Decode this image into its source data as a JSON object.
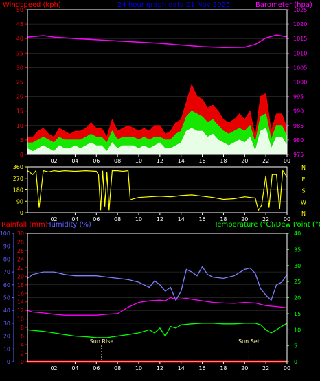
{
  "colors": {
    "background": "#000000",
    "frame": "#ffffff",
    "grid": "#404040",
    "wind_speed": "#ff0000",
    "wind_avg": "#00ff00",
    "wind_min": "#ffffff",
    "barometer": "#ff00ff",
    "direction": "#ffff00",
    "rainfall": "#ff0000",
    "humidity": "#8080ff",
    "temperature": "#ff00ff",
    "dew_point": "#00ff00",
    "title": "#0000ff",
    "sun_marker": "#ffffa0",
    "axis_left_top": "#ff0000",
    "axis_right_top": "#ff00ff",
    "axis_left_bottom_a": "#ff0000",
    "axis_left_bottom_b": "#6060ff",
    "axis_right_bottom": "#00ff00"
  },
  "chart_data": [
    {
      "type": "line",
      "id": "wind-barometer",
      "title": "24 hour graph data  01 Nov 2025",
      "ylabel_left": "Windspeed (kph)",
      "ylabel_right": "Barometer (hpa)",
      "ylim_left": [
        0,
        50
      ],
      "yticks_left": [
        "0",
        "5",
        "10",
        "15",
        "20",
        "25",
        "30",
        "35",
        "40",
        "45",
        "50"
      ],
      "ylim_right": [
        975,
        1025
      ],
      "yticks_right": [
        "975",
        "980",
        "985",
        "990",
        "995",
        "1000",
        "1005",
        "1010",
        "1015",
        "1020",
        "1025"
      ],
      "x_range_hours": [
        -0.5,
        24
      ],
      "x_tick_labels": [
        "02",
        "04",
        "06",
        "08",
        "10",
        "12",
        "14",
        "16",
        "18",
        "20",
        "22",
        "00"
      ],
      "series": [
        {
          "key": "wind_speed",
          "axis": "left",
          "x": [
            -0.5,
            0,
            0.5,
            1,
            1.5,
            2,
            2.5,
            3,
            3.5,
            4,
            4.5,
            5,
            5.5,
            6,
            6.5,
            7,
            7.5,
            8,
            8.5,
            9,
            9.5,
            10,
            10.5,
            11,
            11.5,
            12,
            12.5,
            13,
            13.5,
            14,
            14.5,
            15,
            15.5,
            16,
            16.5,
            17,
            17.5,
            18,
            18.5,
            19,
            19.5,
            20,
            20.5,
            21,
            21.5,
            22,
            22.5,
            23,
            23.5,
            24
          ],
          "y": [
            6,
            6,
            8,
            9,
            7,
            6,
            9,
            8,
            7,
            8,
            8,
            9,
            11,
            9,
            9,
            6,
            12,
            8,
            9,
            10,
            9,
            8,
            9,
            8,
            10,
            10,
            7,
            8,
            11,
            12,
            18,
            24,
            20,
            19,
            16,
            17,
            15,
            12,
            11,
            12,
            14,
            12,
            15,
            6,
            20,
            21,
            8,
            14,
            14,
            9
          ]
        },
        {
          "key": "wind_avg",
          "axis": "left",
          "x": [
            -0.5,
            0,
            0.5,
            1,
            1.5,
            2,
            2.5,
            3,
            3.5,
            4,
            4.5,
            5,
            5.5,
            6,
            6.5,
            7,
            7.5,
            8,
            8.5,
            9,
            9.5,
            10,
            10.5,
            11,
            11.5,
            12,
            12.5,
            13,
            13.5,
            14,
            14.5,
            15,
            15.5,
            16,
            16.5,
            17,
            17.5,
            18,
            18.5,
            19,
            19.5,
            20,
            20.5,
            21,
            21.5,
            22,
            22.5,
            23,
            23.5,
            24
          ],
          "y": [
            4,
            4,
            5,
            6,
            5,
            4,
            6,
            5,
            5,
            5,
            5,
            6,
            7,
            6,
            6,
            4,
            8,
            5,
            6,
            6,
            6,
            5,
            6,
            5,
            6,
            6,
            5,
            5,
            7,
            8,
            13,
            15,
            14,
            13,
            11,
            12,
            10,
            8,
            7,
            8,
            9,
            8,
            10,
            4,
            13,
            14,
            5,
            10,
            10,
            6
          ]
        },
        {
          "key": "wind_min",
          "axis": "left",
          "x": [
            -0.5,
            0,
            0.5,
            1,
            1.5,
            2,
            2.5,
            3,
            3.5,
            4,
            4.5,
            5,
            5.5,
            6,
            6.5,
            7,
            7.5,
            8,
            8.5,
            9,
            9.5,
            10,
            10.5,
            11,
            11.5,
            12,
            12.5,
            13,
            13.5,
            14,
            14.5,
            15,
            15.5,
            16,
            16.5,
            17,
            17.5,
            18,
            18.5,
            19,
            19.5,
            20,
            20.5,
            21,
            21.5,
            22,
            22.5,
            23,
            23.5,
            24
          ],
          "y": [
            2,
            1,
            2,
            3,
            2,
            1,
            3,
            2,
            2,
            3,
            2,
            3,
            4,
            3,
            3,
            1,
            4,
            2,
            3,
            3,
            3,
            2,
            3,
            2,
            3,
            4,
            2,
            2,
            3,
            4,
            8,
            9,
            8,
            8,
            6,
            7,
            5,
            4,
            3,
            4,
            5,
            4,
            6,
            1,
            8,
            9,
            2,
            6,
            6,
            3
          ]
        },
        {
          "key": "barometer",
          "axis": "right",
          "x": [
            -0.5,
            1,
            2,
            4,
            6,
            8,
            10,
            12,
            14,
            16,
            18,
            20,
            21,
            22,
            23,
            24
          ],
          "y": [
            1015.5,
            1016,
            1015.5,
            1015,
            1014.6,
            1014.2,
            1013.8,
            1013.4,
            1012.8,
            1012.2,
            1011.9,
            1012,
            1013,
            1015.2,
            1016.2,
            1015.6
          ]
        }
      ]
    },
    {
      "type": "scatter",
      "id": "wind-direction",
      "yticks_left": [
        "0",
        "90",
        "180",
        "270",
        "360"
      ],
      "ylim": [
        0,
        360
      ],
      "yticks_right": [
        "N",
        "W",
        "S",
        "E",
        "N"
      ],
      "x_range_hours": [
        -0.5,
        24
      ],
      "x_tick_labels": [
        "02",
        "04",
        "06",
        "08",
        "10",
        "12",
        "14",
        "16",
        "18",
        "20",
        "22",
        "00"
      ],
      "series": [
        {
          "key": "direction",
          "x": [
            -0.5,
            0,
            0.3,
            0.6,
            1,
            1.5,
            2,
            2.5,
            3,
            4,
            5,
            6,
            6.2,
            6.4,
            6.6,
            6.8,
            7,
            7.2,
            7.5,
            8,
            8.5,
            9,
            9.2,
            9.5,
            10,
            11,
            12,
            13,
            14,
            15,
            16,
            17,
            18,
            19,
            20,
            21,
            21.3,
            21.6,
            22,
            22.3,
            22.6,
            23,
            23.3,
            23.6,
            24
          ],
          "y": [
            330,
            300,
            330,
            40,
            330,
            320,
            330,
            325,
            330,
            325,
            330,
            325,
            300,
            20,
            330,
            50,
            320,
            20,
            330,
            330,
            325,
            330,
            100,
            110,
            120,
            125,
            130,
            125,
            135,
            140,
            130,
            120,
            105,
            110,
            125,
            115,
            20,
            60,
            290,
            40,
            300,
            300,
            30,
            330,
            280
          ]
        }
      ]
    },
    {
      "type": "line",
      "id": "temp-humidity-rain",
      "ylabel_left_a": "Rainfall (mm)",
      "ylabel_left_b": "Humidity (%)",
      "ylabel_right": "Temperature (°C)/Dew Point (°C)",
      "ylim_humidity": [
        0,
        100
      ],
      "yticks_humidity": [
        "0",
        "10",
        "20",
        "30",
        "40",
        "50",
        "60",
        "70",
        "80",
        "90",
        "100"
      ],
      "ylim_rain": [
        0,
        30
      ],
      "yticks_rain": [
        "0",
        "2",
        "4",
        "6",
        "8",
        "10",
        "12",
        "14",
        "16",
        "18",
        "20",
        "22",
        "24",
        "26",
        "28",
        "30"
      ],
      "ylim_temp": [
        0,
        40
      ],
      "yticks_temp": [
        "0",
        "5",
        "10",
        "15",
        "20",
        "25",
        "30",
        "35",
        "40"
      ],
      "x_range_hours": [
        -0.5,
        24
      ],
      "x_tick_labels": [
        "02",
        "04",
        "06",
        "08",
        "10",
        "12",
        "14",
        "16",
        "18",
        "20",
        "22",
        "00"
      ],
      "annotations": [
        {
          "label": "Sun Rise",
          "x_hour": 6.5
        },
        {
          "label": "Sun Set",
          "x_hour": 20.4
        }
      ],
      "series": [
        {
          "key": "humidity",
          "axis": "humidity",
          "x": [
            -0.5,
            0,
            1,
            2,
            3,
            4,
            5,
            6,
            7,
            8,
            9,
            10,
            10.5,
            11,
            11.5,
            12,
            12.5,
            13,
            13.5,
            14,
            14.5,
            15,
            15.5,
            16,
            16.5,
            17,
            18,
            19,
            20,
            20.5,
            21,
            21.5,
            22,
            22.5,
            23,
            23.5,
            24
          ],
          "y": [
            65,
            68,
            70,
            70,
            68,
            67,
            67,
            67,
            66,
            65,
            64,
            62,
            60,
            58,
            63,
            60,
            55,
            58,
            48,
            55,
            72,
            70,
            67,
            74,
            68,
            66,
            65,
            67,
            72,
            73,
            69,
            57,
            52,
            48,
            60,
            62,
            68
          ]
        },
        {
          "key": "temperature",
          "axis": "temp",
          "x": [
            -0.5,
            0,
            1,
            2,
            3,
            4,
            5,
            6,
            7,
            8,
            9,
            10,
            11,
            12,
            12.5,
            13,
            13.5,
            14,
            14.5,
            15,
            16,
            17,
            18,
            19,
            20,
            21,
            22,
            23,
            23.5,
            24
          ],
          "y": [
            16,
            15.5,
            15.2,
            14.8,
            14.5,
            14.5,
            14.5,
            14.5,
            14.8,
            15,
            17,
            18.5,
            19,
            19.2,
            19,
            20,
            19.5,
            19.6,
            19.8,
            19.5,
            19,
            18.5,
            18.3,
            18.2,
            18.5,
            18.3,
            17.5,
            17.2,
            17,
            16.8
          ]
        },
        {
          "key": "dew_point",
          "axis": "temp",
          "x": [
            -0.5,
            0,
            1,
            2,
            3,
            4,
            5,
            6,
            7,
            8,
            9,
            10,
            10.5,
            11,
            11.5,
            12,
            12.5,
            13,
            13.5,
            14,
            15,
            16,
            17,
            18,
            19,
            20,
            20.5,
            21,
            21.5,
            22,
            22.5,
            23,
            23.5,
            24
          ],
          "y": [
            10,
            9.8,
            9.5,
            9,
            8.5,
            8,
            7.8,
            7.5,
            7.5,
            8,
            8.5,
            9,
            9.5,
            10,
            9,
            10.5,
            8,
            11,
            10.5,
            11.5,
            11.8,
            12,
            12,
            11.8,
            11.8,
            12,
            12,
            12,
            11.5,
            10,
            9,
            10,
            11,
            12
          ]
        },
        {
          "key": "rainfall",
          "axis": "rain",
          "x": [
            -0.5,
            24
          ],
          "y": [
            0,
            0
          ]
        }
      ]
    }
  ]
}
